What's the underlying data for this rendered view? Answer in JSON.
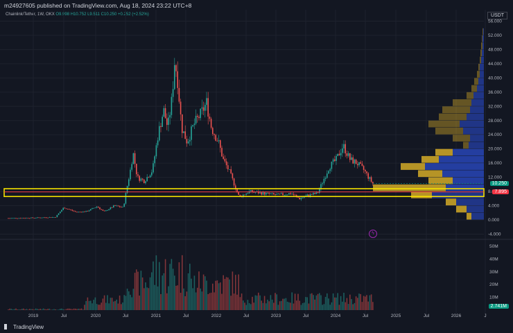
{
  "header": {
    "published": "m24927605 published on TradingView.com, Aug 18, 2024 23:22 UTC+8"
  },
  "symbol": {
    "name": "Chainlink/Tether, 1W, OKX",
    "open": "O9.998",
    "high": "H10.752",
    "low": "L9.511",
    "close": "C10.250",
    "change": "+0.252 (+2.52%)"
  },
  "currency_button": "USDT",
  "price_axis": [
    "56.000",
    "52.000",
    "48.000",
    "44.000",
    "40.000",
    "36.000",
    "32.000",
    "28.000",
    "24.000",
    "20.000",
    "16.000",
    "12.000",
    "8.000",
    "4.000",
    "0.000",
    "-4.000"
  ],
  "volume_axis": [
    "50M",
    "40M",
    "30M",
    "20M",
    "10M"
  ],
  "time_axis": [
    "2019",
    "Jul",
    "2020",
    "Jul",
    "2021",
    "Jul",
    "2022",
    "Jul",
    "2023",
    "Jul",
    "2024",
    "Jul",
    "2025",
    "Jul",
    "2026",
    "J"
  ],
  "tags": {
    "current_price": "10.250",
    "line_price": "7.895",
    "volume": "2.741M"
  },
  "brand": "TradingView",
  "colors": {
    "background": "#131722",
    "up": "#26a69a",
    "down": "#ef5350",
    "vp_gold": "#c9a227",
    "vp_blue": "#2540a8",
    "zone_yellow": "#f5e100",
    "line_red": "#f23645"
  },
  "chart_data": {
    "type": "candlestick",
    "price_range": [
      -4,
      56
    ],
    "highlight_zone": [
      6.6,
      8.8
    ],
    "horizontal_line": 7.895,
    "last_close": 10.25,
    "volume_profile_levels": [
      0,
      2,
      4,
      6,
      8,
      10,
      12,
      14,
      16,
      18,
      20,
      22,
      24,
      26,
      28,
      30,
      32,
      34,
      36,
      38,
      40,
      42,
      44,
      46,
      48,
      50,
      52
    ]
  }
}
